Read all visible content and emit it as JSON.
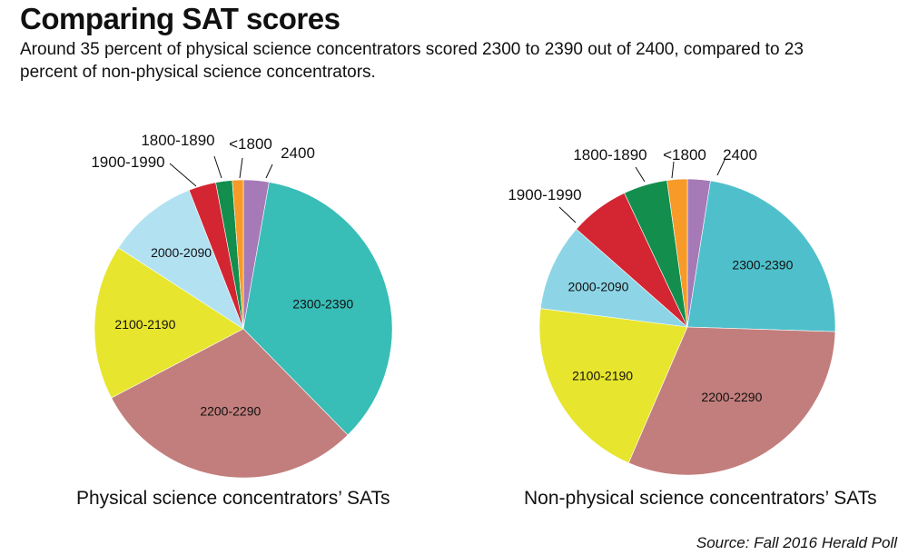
{
  "title": "Comparing SAT scores",
  "subtitle": "Around 35 percent of physical science concentrators scored 2300 to 2390 out of 2400, compared to 23 percent of non-physical science concentrators.",
  "source": "Source: Fall 2016 Herald Poll",
  "chart_data": [
    {
      "type": "pie",
      "title": "Physical science concentrators’ SATs",
      "unit": "percent",
      "slices": [
        {
          "label": "2400",
          "value": 2.8,
          "color": "#a57ab6"
        },
        {
          "label": "2300-2390",
          "value": 35.2,
          "color": "#38bdb7"
        },
        {
          "label": "2200-2290",
          "value": 30.0,
          "color": "#c27e7c"
        },
        {
          "label": "2100-2190",
          "value": 17.0,
          "color": "#e7e52d"
        },
        {
          "label": "2000-2090",
          "value": 10.0,
          "color": "#b2e2f2"
        },
        {
          "label": "1900-1990",
          "value": 3.0,
          "color": "#d42532"
        },
        {
          "label": "1800-1890",
          "value": 1.8,
          "color": "#138e4d"
        },
        {
          "label": "<1800",
          "value": 1.2,
          "color": "#f79a27"
        }
      ]
    },
    {
      "type": "pie",
      "title": "Non-physical science concentrators’ SATs",
      "unit": "percent",
      "slices": [
        {
          "label": "2400",
          "value": 2.5,
          "color": "#a57ab6"
        },
        {
          "label": "2300-2390",
          "value": 23.0,
          "color": "#4fc0cb"
        },
        {
          "label": "2200-2290",
          "value": 31.0,
          "color": "#c27e7c"
        },
        {
          "label": "2100-2190",
          "value": 20.5,
          "color": "#e7e52d"
        },
        {
          "label": "2000-2090",
          "value": 9.5,
          "color": "#8dd5e6"
        },
        {
          "label": "1900-1990",
          "value": 6.5,
          "color": "#d42532"
        },
        {
          "label": "1800-1890",
          "value": 4.8,
          "color": "#138e4d"
        },
        {
          "label": "<1800",
          "value": 2.2,
          "color": "#f79a27"
        }
      ]
    }
  ]
}
